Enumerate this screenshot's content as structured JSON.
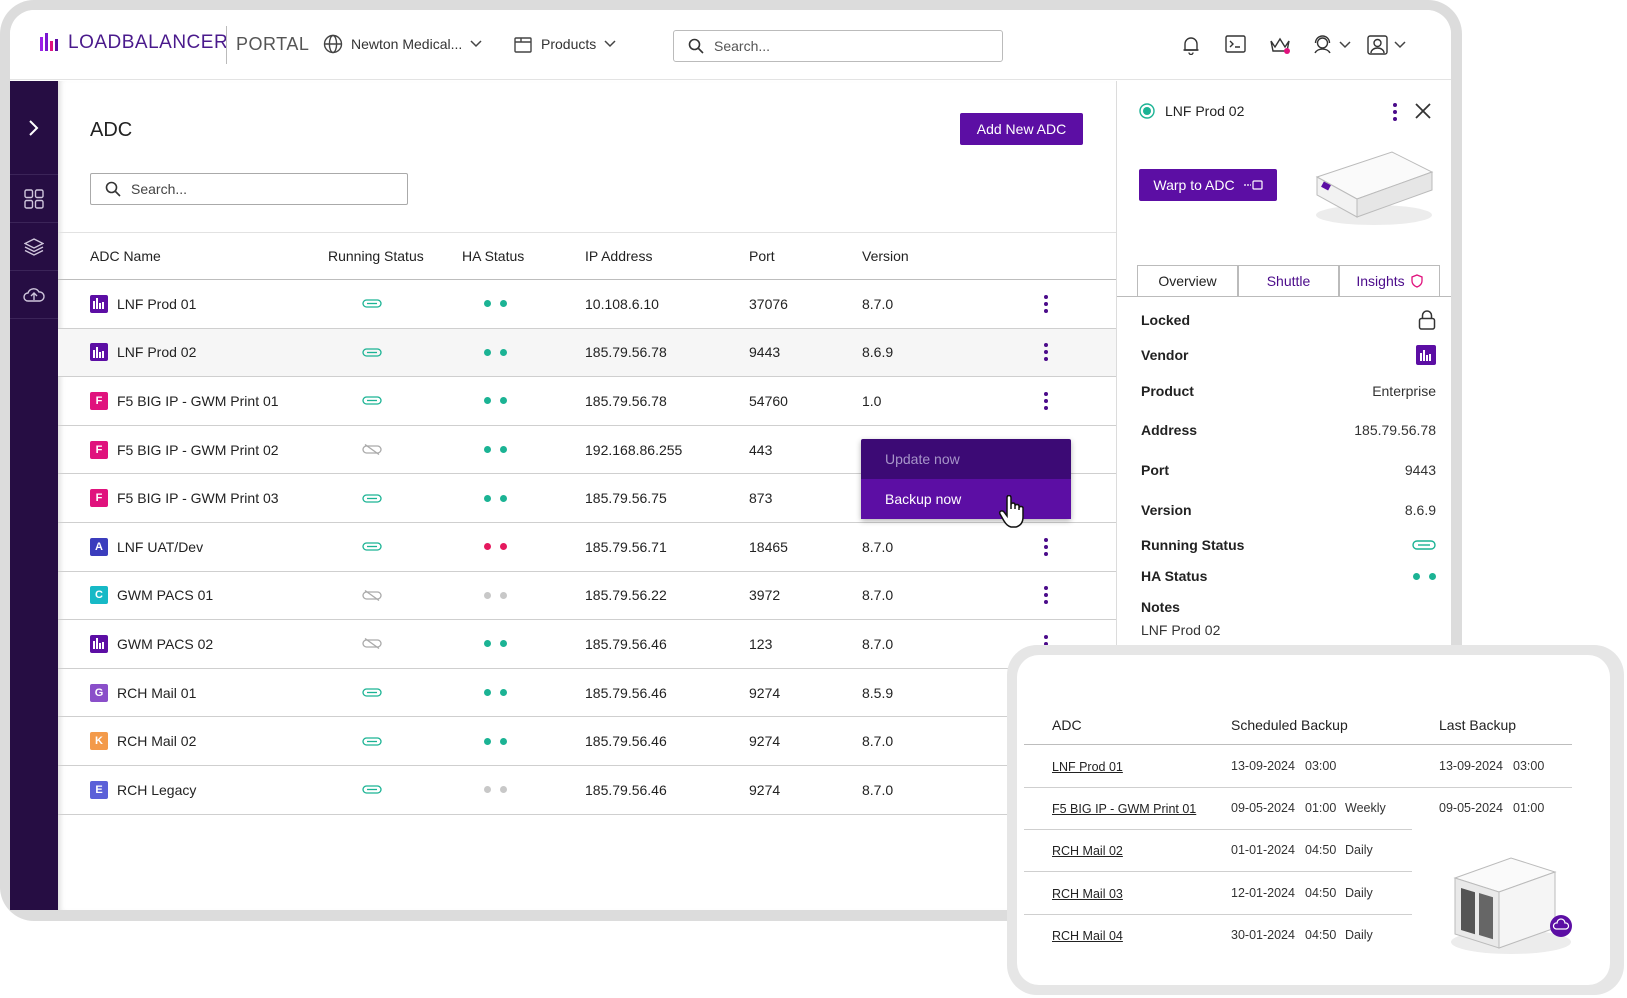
{
  "header": {
    "logo_text": "LOADBALANCER",
    "portal": "PORTAL",
    "org": "Newton Medical...",
    "products": "Products",
    "search_placeholder": "Search..."
  },
  "main": {
    "title": "ADC",
    "add_button": "Add New ADC",
    "search_placeholder": "Search...",
    "columns": [
      "ADC Name",
      "Running Status",
      "HA Status",
      "IP Address",
      "Port",
      "Version"
    ],
    "rows": [
      {
        "name": "LNF Prod 01",
        "badge": "lb",
        "badge_color": "#5c0ea4",
        "running": "on",
        "ha": "green",
        "ip": "10.108.6.10",
        "port": "37076",
        "version": "8.7.0"
      },
      {
        "name": "LNF Prod 02",
        "badge": "lb",
        "badge_color": "#5c0ea4",
        "running": "on",
        "ha": "green",
        "ip": "185.79.56.78",
        "port": "9443",
        "version": "8.6.9"
      },
      {
        "name": "F5 BIG IP - GWM Print 01",
        "badge": "F",
        "badge_color": "#e0127d",
        "running": "on",
        "ha": "green",
        "ip": "185.79.56.78",
        "port": "54760",
        "version": "1.0"
      },
      {
        "name": "F5 BIG IP - GWM Print 02",
        "badge": "F",
        "badge_color": "#e0127d",
        "running": "off",
        "ha": "green",
        "ip": "192.168.86.255",
        "port": "443",
        "version": ""
      },
      {
        "name": "F5 BIG IP - GWM Print 03",
        "badge": "F",
        "badge_color": "#e0127d",
        "running": "on",
        "ha": "green",
        "ip": "185.79.56.75",
        "port": "873",
        "version": ""
      },
      {
        "name": "LNF UAT/Dev",
        "badge": "A",
        "badge_color": "#3b3dbd",
        "running": "on",
        "ha": "red",
        "ip": "185.79.56.71",
        "port": "18465",
        "version": "8.7.0"
      },
      {
        "name": "GWM PACS 01",
        "badge": "C",
        "badge_color": "#17b9c6",
        "running": "off",
        "ha": "grey",
        "ip": "185.79.56.22",
        "port": "3972",
        "version": "8.7.0"
      },
      {
        "name": "GWM PACS 02",
        "badge": "lb",
        "badge_color": "#5c0ea4",
        "running": "off",
        "ha": "green",
        "ip": "185.79.56.46",
        "port": "123",
        "version": "8.7.0"
      },
      {
        "name": "RCH Mail 01",
        "badge": "G",
        "badge_color": "#8a4fc9",
        "running": "on",
        "ha": "green",
        "ip": "185.79.56.46",
        "port": "9274",
        "version": "8.5.9"
      },
      {
        "name": "RCH Mail 02",
        "badge": "K",
        "badge_color": "#f39a4a",
        "running": "on",
        "ha": "green",
        "ip": "185.79.56.46",
        "port": "9274",
        "version": "8.7.0"
      },
      {
        "name": "RCH Legacy",
        "badge": "E",
        "badge_color": "#5b60d8",
        "running": "on",
        "ha": "grey",
        "ip": "185.79.56.46",
        "port": "9274",
        "version": "8.7.0"
      }
    ],
    "menu": {
      "update": "Update now",
      "backup": "Backup now"
    }
  },
  "panel": {
    "title": "LNF Prod 02",
    "warp_button": "Warp to ADC",
    "tabs": [
      "Overview",
      "Shuttle",
      "Insights"
    ],
    "props": {
      "locked": "Locked",
      "vendor": "Vendor",
      "product_label": "Product",
      "product_value": "Enterprise",
      "address_label": "Address",
      "address_value": "185.79.56.78",
      "port_label": "Port",
      "port_value": "9443",
      "version_label": "Version",
      "version_value": "8.6.9",
      "running_label": "Running Status",
      "ha_label": "HA Status",
      "notes_label": "Notes",
      "notes_value": "LNF Prod 02"
    }
  },
  "backup": {
    "columns": [
      "ADC",
      "Scheduled Backup",
      "Last Backup"
    ],
    "rows": [
      {
        "adc": "LNF Prod 01",
        "sched_date": "13-09-2024",
        "sched_time": "03:00",
        "freq": "",
        "last_date": "13-09-2024",
        "last_time": "03:00"
      },
      {
        "adc": "F5 BIG IP - GWM Print 01",
        "sched_date": "09-05-2024",
        "sched_time": "01:00",
        "freq": "Weekly",
        "last_date": "09-05-2024",
        "last_time": "01:00"
      },
      {
        "adc": "RCH Mail 02",
        "sched_date": "01-01-2024",
        "sched_time": "04:50",
        "freq": "Daily",
        "last_date": "",
        "last_time": ""
      },
      {
        "adc": "RCH Mail 03",
        "sched_date": "12-01-2024",
        "sched_time": "04:50",
        "freq": "Daily",
        "last_date": "",
        "last_time": ""
      },
      {
        "adc": "RCH Mail 04",
        "sched_date": "30-01-2024",
        "sched_time": "04:50",
        "freq": "Daily",
        "last_date": "",
        "last_time": ""
      }
    ]
  },
  "colors": {
    "brand": "#5c0ea4",
    "sidebar": "#260d43",
    "ha_green": "#1bb394",
    "ha_red": "#e5195e",
    "ha_grey": "#c8c8c8"
  }
}
